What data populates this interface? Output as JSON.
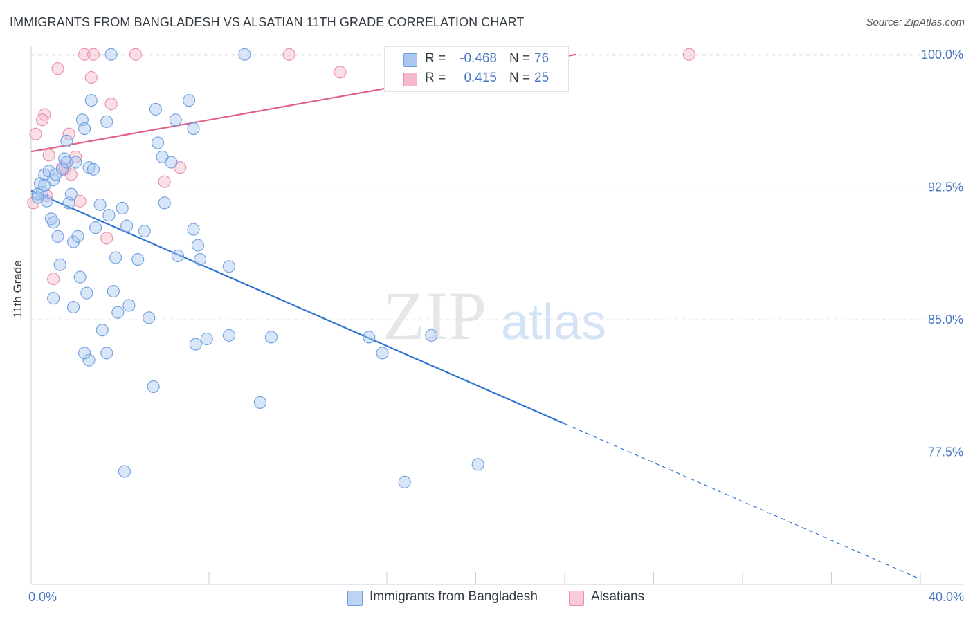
{
  "header": {
    "title": "IMMIGRANTS FROM BANGLADESH VS ALSATIAN 11TH GRADE CORRELATION CHART",
    "source": "Source: ZipAtlas.com"
  },
  "watermark": {
    "zip": "ZIP",
    "atlas": "atlas"
  },
  "stats_legend": [
    {
      "r_label": "R =",
      "r_value": "-0.468",
      "n_label": "N =",
      "n_value": "76"
    },
    {
      "r_label": "R =",
      "r_value": "0.415",
      "n_label": "N =",
      "n_value": "25"
    }
  ],
  "colors": {
    "blue_fill": "#a9c7f0",
    "blue_stroke": "#6f9fdf",
    "blue_line": "#2f74d0",
    "pink_fill": "#f6b8ca",
    "pink_stroke": "#ea8dab",
    "pink_line": "#e0608a",
    "axis_text": "#4a78c2",
    "grid": "#e3e6ea"
  },
  "chart_data": {
    "type": "scatter",
    "title": "IMMIGRANTS FROM BANGLADESH VS ALSATIAN 11TH GRADE CORRELATION CHART",
    "xlabel": "",
    "ylabel": "11th Grade",
    "xlim": [
      0,
      40
    ],
    "ylim": [
      70.0,
      100.5
    ],
    "x_tick_labels": [
      {
        "value": 0,
        "label": "0.0%"
      },
      {
        "value": 40,
        "label": "40.0%"
      }
    ],
    "y_tick_labels": [
      {
        "value": 100.0,
        "label": "100.0%"
      },
      {
        "value": 92.5,
        "label": "92.5%"
      },
      {
        "value": 85.0,
        "label": "85.0%"
      },
      {
        "value": 77.5,
        "label": "77.5%"
      }
    ],
    "grid": true,
    "legend_position": "bottom-center",
    "series": [
      {
        "name": "Immigrants from Bangladesh",
        "color": "#a9c7f0",
        "trend": {
          "x0": 0,
          "y0": 92.3,
          "x_solid_end": 24.0,
          "x1": 40,
          "y1": 70.3
        },
        "points": [
          [
            3.6,
            100.0
          ],
          [
            9.6,
            100.0
          ],
          [
            0.3,
            92.1
          ],
          [
            0.4,
            92.7
          ],
          [
            0.5,
            92.2
          ],
          [
            0.6,
            93.2
          ],
          [
            0.7,
            91.7
          ],
          [
            0.8,
            93.4
          ],
          [
            0.9,
            90.7
          ],
          [
            1.0,
            90.5
          ],
          [
            1.0,
            92.9
          ],
          [
            1.1,
            93.2
          ],
          [
            1.2,
            89.7
          ],
          [
            1.3,
            88.1
          ],
          [
            1.4,
            93.5
          ],
          [
            1.5,
            94.1
          ],
          [
            1.6,
            93.9
          ],
          [
            1.6,
            95.1
          ],
          [
            1.7,
            91.6
          ],
          [
            1.8,
            92.1
          ],
          [
            1.9,
            89.4
          ],
          [
            2.0,
            93.9
          ],
          [
            2.1,
            89.7
          ],
          [
            2.2,
            87.4
          ],
          [
            2.3,
            96.3
          ],
          [
            2.4,
            95.8
          ],
          [
            2.5,
            86.5
          ],
          [
            2.6,
            93.6
          ],
          [
            2.7,
            97.4
          ],
          [
            2.8,
            93.5
          ],
          [
            2.9,
            90.2
          ],
          [
            3.1,
            91.5
          ],
          [
            3.2,
            84.4
          ],
          [
            3.4,
            96.2
          ],
          [
            3.5,
            90.9
          ],
          [
            3.7,
            86.6
          ],
          [
            3.8,
            88.5
          ],
          [
            3.9,
            85.4
          ],
          [
            4.1,
            91.3
          ],
          [
            4.3,
            90.3
          ],
          [
            4.4,
            85.8
          ],
          [
            4.8,
            88.4
          ],
          [
            5.1,
            90.0
          ],
          [
            5.3,
            85.1
          ],
          [
            5.6,
            96.9
          ],
          [
            5.7,
            95.0
          ],
          [
            5.9,
            94.2
          ],
          [
            6.0,
            91.6
          ],
          [
            6.3,
            93.9
          ],
          [
            6.5,
            96.3
          ],
          [
            6.6,
            88.6
          ],
          [
            7.1,
            97.4
          ],
          [
            7.3,
            90.1
          ],
          [
            7.3,
            95.8
          ],
          [
            7.4,
            83.6
          ],
          [
            7.5,
            89.2
          ],
          [
            7.6,
            88.4
          ],
          [
            7.9,
            83.9
          ],
          [
            8.9,
            84.1
          ],
          [
            8.9,
            88.0
          ],
          [
            10.3,
            80.3
          ],
          [
            10.8,
            84.0
          ],
          [
            15.2,
            84.0
          ],
          [
            15.8,
            83.1
          ],
          [
            18.0,
            84.1
          ],
          [
            20.1,
            76.8
          ],
          [
            16.8,
            75.8
          ],
          [
            4.2,
            76.4
          ],
          [
            5.5,
            81.2
          ],
          [
            2.6,
            82.7
          ],
          [
            3.4,
            83.1
          ],
          [
            2.4,
            83.1
          ],
          [
            1.9,
            85.7
          ],
          [
            1.0,
            86.2
          ],
          [
            0.3,
            91.9
          ],
          [
            0.6,
            92.6
          ]
        ]
      },
      {
        "name": "Alsatians",
        "color": "#f6b8ca",
        "trend": {
          "x0": 0,
          "y0": 94.5,
          "x1": 24.5,
          "y1": 100.0
        },
        "points": [
          [
            2.4,
            100.0
          ],
          [
            2.8,
            100.0
          ],
          [
            4.7,
            100.0
          ],
          [
            11.6,
            100.0
          ],
          [
            29.6,
            100.0
          ],
          [
            1.2,
            99.2
          ],
          [
            2.7,
            98.7
          ],
          [
            13.9,
            99.0
          ],
          [
            3.6,
            97.2
          ],
          [
            0.6,
            96.6
          ],
          [
            0.5,
            96.3
          ],
          [
            0.2,
            95.5
          ],
          [
            1.7,
            95.5
          ],
          [
            0.8,
            94.3
          ],
          [
            2.0,
            94.2
          ],
          [
            1.4,
            93.6
          ],
          [
            1.5,
            93.5
          ],
          [
            6.7,
            93.6
          ],
          [
            1.8,
            93.2
          ],
          [
            6.0,
            92.8
          ],
          [
            0.7,
            92.0
          ],
          [
            2.2,
            91.7
          ],
          [
            0.1,
            91.6
          ],
          [
            3.4,
            89.6
          ],
          [
            1.0,
            87.3
          ]
        ]
      }
    ]
  },
  "legend": {
    "items": [
      {
        "label": "Immigrants from Bangladesh"
      },
      {
        "label": "Alsatians"
      }
    ]
  }
}
